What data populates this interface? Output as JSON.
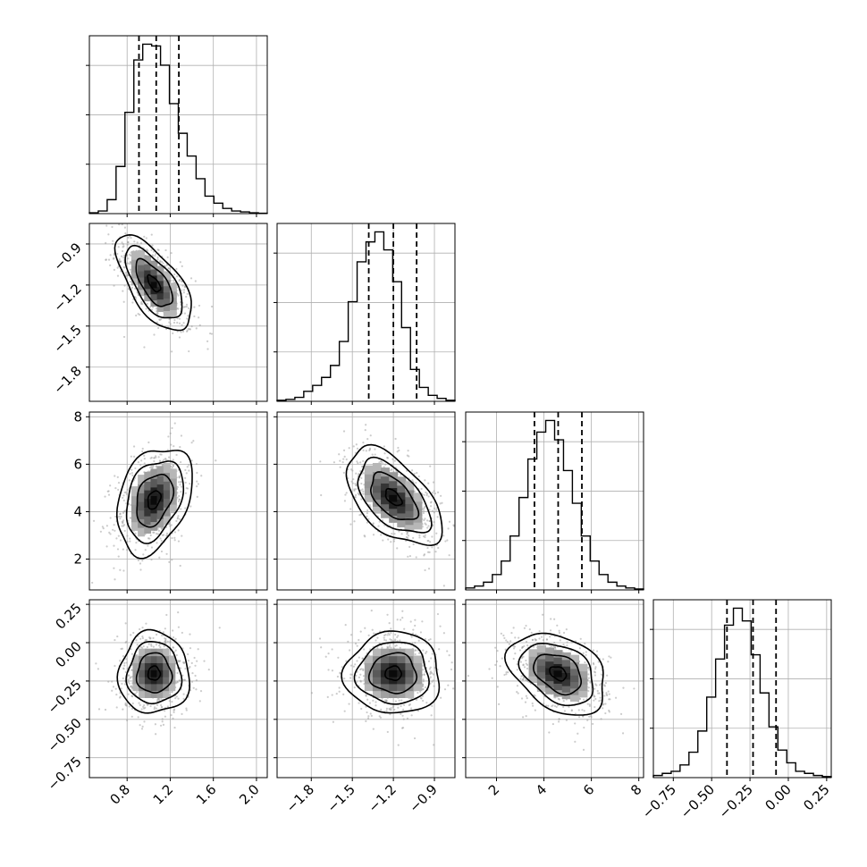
{
  "chart_data": {
    "type": "corner",
    "parameters": [
      {
        "range": [
          0.45,
          2.1
        ],
        "ticks": [
          0.8,
          1.2,
          1.6,
          2.0
        ],
        "tick_labels": [
          "0.8",
          "1.2",
          "1.6",
          "2.0"
        ],
        "quantiles": [
          0.91,
          1.07,
          1.28
        ],
        "hist": [
          0.5,
          1.5,
          8,
          27,
          58,
          88,
          97,
          96,
          85,
          63,
          46,
          33,
          20,
          10,
          6,
          3,
          1.5,
          1,
          0.5,
          0.2
        ]
      },
      {
        "range": [
          -2.05,
          -0.75
        ],
        "ticks": [
          -1.8,
          -1.5,
          -1.2,
          -0.9
        ],
        "tick_labels": [
          "−1.8",
          "−1.5",
          "−1.2",
          "−0.9"
        ],
        "quantiles": [
          -1.38,
          -1.2,
          -1.03
        ],
        "hist": [
          0.5,
          1,
          2,
          5,
          8,
          12,
          18,
          30,
          50,
          70,
          80,
          85,
          76,
          60,
          37,
          16,
          7,
          3,
          1.5,
          0.5
        ]
      },
      {
        "range": [
          0.7,
          8.2
        ],
        "ticks": [
          2,
          4,
          6,
          8
        ],
        "tick_labels": [
          "2",
          "4",
          "6",
          "8"
        ],
        "quantiles": [
          3.6,
          4.6,
          5.6
        ],
        "hist": [
          1,
          2,
          4,
          8,
          15,
          28,
          48,
          68,
          82,
          88,
          78,
          62,
          45,
          28,
          15,
          8,
          4,
          2,
          1,
          0.5
        ]
      },
      {
        "range": [
          -0.88,
          0.28
        ],
        "ticks": [
          -0.75,
          -0.5,
          -0.25,
          0.0,
          0.25
        ],
        "tick_labels": [
          "−0.75",
          "−0.50",
          "−0.25",
          "0.00",
          "0.25"
        ],
        "quantiles": [
          -0.4,
          -0.23,
          -0.08
        ],
        "hist": [
          1,
          2,
          3,
          6,
          12,
          22,
          38,
          56,
          72,
          80,
          74,
          58,
          40,
          24,
          13,
          7,
          3,
          2,
          1,
          0.5
        ]
      }
    ],
    "pairs": [
      {
        "x": 0,
        "y": 1,
        "mean": [
          1.05,
          -1.19
        ],
        "sd": [
          0.17,
          0.17
        ],
        "rho": -0.65
      },
      {
        "x": 0,
        "y": 2,
        "mean": [
          1.05,
          4.5
        ],
        "sd": [
          0.17,
          1.1
        ],
        "rho": 0.32
      },
      {
        "x": 1,
        "y": 2,
        "mean": [
          -1.2,
          4.6
        ],
        "sd": [
          0.17,
          1.0
        ],
        "rho": -0.55
      },
      {
        "x": 0,
        "y": 3,
        "mean": [
          1.05,
          -0.2
        ],
        "sd": [
          0.16,
          0.13
        ],
        "rho": 0.0
      },
      {
        "x": 1,
        "y": 3,
        "mean": [
          -1.2,
          -0.2
        ],
        "sd": [
          0.17,
          0.13
        ],
        "rho": 0.0
      },
      {
        "x": 2,
        "y": 3,
        "mean": [
          4.6,
          -0.2
        ],
        "sd": [
          1.0,
          0.13
        ],
        "rho": -0.35
      }
    ],
    "grid": true,
    "colors": {
      "line": "#000000",
      "grid": "#b0b0b0",
      "scatter": "#9a9a9a"
    }
  }
}
